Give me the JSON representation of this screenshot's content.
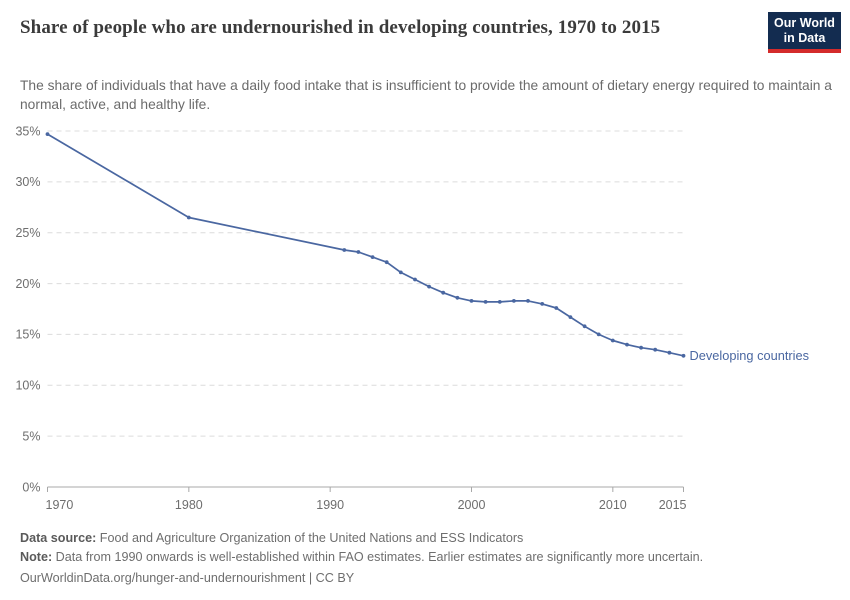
{
  "header": {
    "title": "Share of people who are undernourished in developing countries, 1970 to 2015",
    "logo": {
      "line1": "Our World",
      "line2": "in Data"
    }
  },
  "subtitle": "The share of individuals that have a daily food intake that is insufficient to provide the amount of dietary energy required to maintain a normal, active, and healthy life.",
  "chart_data": {
    "type": "line",
    "title": "Share of people who are undernourished in developing countries, 1970 to 2015",
    "subtitle": "The share of individuals that have a daily food intake that is insufficient to provide the amount of dietary energy required to maintain a normal, active, and healthy life.",
    "xlabel": "",
    "ylabel": "",
    "xlim": [
      1970,
      2015
    ],
    "ylim": [
      0,
      35
    ],
    "yticks": [
      0,
      5,
      10,
      15,
      20,
      25,
      30,
      35
    ],
    "ytick_format": "{}%",
    "xticks": [
      1970,
      1980,
      1990,
      2000,
      2010,
      2015
    ],
    "grid": "horizontal-dashed",
    "legend": "end-of-line-label",
    "colors": {
      "line": "#4a67a1",
      "gridline": "#dcdcdc",
      "axis": "#a8a8a8",
      "tick_label": "#6e6e6e"
    },
    "series": [
      {
        "name": "Developing countries",
        "color": "#4a67a1",
        "points": [
          [
            1970,
            34.7
          ],
          [
            1980,
            26.5
          ],
          [
            1991,
            23.3
          ],
          [
            1992,
            23.1
          ],
          [
            1993,
            22.6
          ],
          [
            1994,
            22.1
          ],
          [
            1995,
            21.1
          ],
          [
            1996,
            20.4
          ],
          [
            1997,
            19.7
          ],
          [
            1998,
            19.1
          ],
          [
            1999,
            18.6
          ],
          [
            2000,
            18.3
          ],
          [
            2001,
            18.2
          ],
          [
            2002,
            18.2
          ],
          [
            2003,
            18.3
          ],
          [
            2004,
            18.3
          ],
          [
            2005,
            18.0
          ],
          [
            2006,
            17.6
          ],
          [
            2007,
            16.7
          ],
          [
            2008,
            15.8
          ],
          [
            2009,
            15.0
          ],
          [
            2010,
            14.4
          ],
          [
            2011,
            14.0
          ],
          [
            2012,
            13.7
          ],
          [
            2013,
            13.5
          ],
          [
            2014,
            13.2
          ],
          [
            2015,
            12.9
          ]
        ]
      }
    ]
  },
  "footer": {
    "source_label": "Data source:",
    "source_text": " Food and Agriculture Organization of the United Nations and ESS Indicators",
    "note_label": "Note:",
    "note_text": " Data from 1990 onwards is well-established within FAO estimates. Earlier estimates are significantly more uncertain.",
    "url_text": "OurWorldinData.org/hunger-and-undernourishment | CC BY"
  }
}
